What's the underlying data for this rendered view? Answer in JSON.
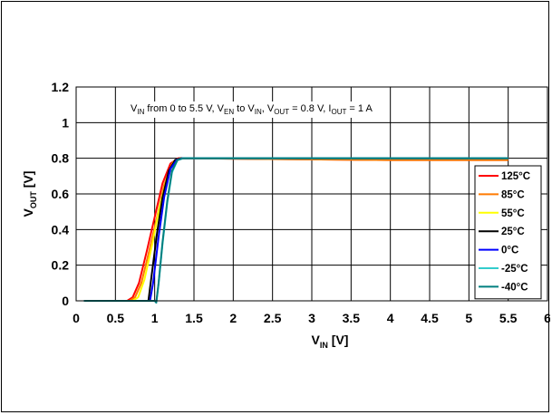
{
  "chart_data": {
    "type": "line",
    "title": "",
    "annotation": {
      "segments": [
        {
          "t": "V"
        },
        {
          "t": "IN",
          "sub": true
        },
        {
          "t": " from 0 to 5.5 V, V"
        },
        {
          "t": "EN",
          "sub": true
        },
        {
          "t": " to V"
        },
        {
          "t": "IN",
          "sub": true
        },
        {
          "t": ", V"
        },
        {
          "t": "OUT",
          "sub": true
        },
        {
          "t": " = 0.8 V, I"
        },
        {
          "t": "OUT",
          "sub": true
        },
        {
          "t": " = 1 A"
        }
      ]
    },
    "xlabel": {
      "main": "V",
      "sub": "IN",
      "suffix": " [V]"
    },
    "ylabel": {
      "main": "V",
      "sub": "OUT",
      "suffix": " [V]"
    },
    "xlim": [
      0,
      6
    ],
    "ylim": [
      0,
      1.2
    ],
    "xticks": [
      0,
      0.5,
      1,
      1.5,
      2,
      2.5,
      3,
      3.5,
      4,
      4.5,
      5,
      5.5,
      6
    ],
    "xtick_labels": [
      "0",
      "0.5",
      "1",
      "1.5",
      "2",
      "2.5",
      "3",
      "3.5",
      "4",
      "4.5",
      "5",
      "5.5",
      "6"
    ],
    "yticks": [
      0,
      0.2,
      0.4,
      0.6,
      0.8,
      1,
      1.2
    ],
    "ytick_labels": [
      "0",
      "0.2",
      "0.4",
      "0.6",
      "0.8",
      "1",
      "1.2"
    ],
    "grid": true,
    "legend_position": "right",
    "series": [
      {
        "name": "125°C",
        "color": "#ff0000",
        "points": [
          [
            0.1,
            0
          ],
          [
            0.65,
            0
          ],
          [
            0.72,
            0.02
          ],
          [
            0.8,
            0.1
          ],
          [
            0.9,
            0.28
          ],
          [
            1.0,
            0.47
          ],
          [
            1.1,
            0.66
          ],
          [
            1.2,
            0.77
          ],
          [
            1.3,
            0.8
          ],
          [
            4.0,
            0.79
          ],
          [
            5.5,
            0.79
          ]
        ]
      },
      {
        "name": "85°C",
        "color": "#ff7a00",
        "points": [
          [
            0.1,
            0
          ],
          [
            0.68,
            0
          ],
          [
            0.75,
            0.02
          ],
          [
            0.83,
            0.1
          ],
          [
            0.93,
            0.28
          ],
          [
            1.03,
            0.47
          ],
          [
            1.12,
            0.65
          ],
          [
            1.22,
            0.77
          ],
          [
            1.32,
            0.8
          ],
          [
            4.0,
            0.79
          ],
          [
            5.5,
            0.79
          ]
        ]
      },
      {
        "name": "55°C",
        "color": "#ffff00",
        "points": [
          [
            0.1,
            0
          ],
          [
            0.72,
            0
          ],
          [
            0.79,
            0.02
          ],
          [
            0.87,
            0.12
          ],
          [
            0.97,
            0.32
          ],
          [
            1.06,
            0.52
          ],
          [
            1.15,
            0.68
          ],
          [
            1.24,
            0.78
          ],
          [
            1.33,
            0.8
          ],
          [
            4.0,
            0.8
          ],
          [
            5.5,
            0.8
          ]
        ]
      },
      {
        "name": "25°C",
        "color": "#000000",
        "points": [
          [
            0.1,
            0
          ],
          [
            0.86,
            0
          ],
          [
            0.92,
            0
          ],
          [
            0.96,
            0.14
          ],
          [
            1.03,
            0.38
          ],
          [
            1.1,
            0.58
          ],
          [
            1.18,
            0.73
          ],
          [
            1.26,
            0.79
          ],
          [
            1.33,
            0.8
          ],
          [
            4.0,
            0.8
          ],
          [
            5.5,
            0.8
          ]
        ]
      },
      {
        "name": "0°C",
        "color": "#0000ff",
        "points": [
          [
            0.1,
            0
          ],
          [
            0.9,
            0
          ],
          [
            0.94,
            0
          ],
          [
            0.98,
            0.1
          ],
          [
            1.05,
            0.36
          ],
          [
            1.12,
            0.58
          ],
          [
            1.2,
            0.74
          ],
          [
            1.28,
            0.79
          ],
          [
            1.35,
            0.8
          ],
          [
            4.0,
            0.8
          ],
          [
            5.5,
            0.8
          ]
        ]
      },
      {
        "name": "-25°C",
        "color": "#33cccc",
        "points": [
          [
            0.1,
            0
          ],
          [
            1.0,
            0
          ],
          [
            1.02,
            -0.01
          ],
          [
            1.05,
            0.1
          ],
          [
            1.1,
            0.32
          ],
          [
            1.16,
            0.55
          ],
          [
            1.22,
            0.72
          ],
          [
            1.29,
            0.79
          ],
          [
            1.36,
            0.8
          ],
          [
            4.0,
            0.8
          ],
          [
            5.5,
            0.8
          ]
        ]
      },
      {
        "name": "-40°C",
        "color": "#007f7f",
        "points": [
          [
            0.1,
            0
          ],
          [
            1.0,
            0
          ],
          [
            1.02,
            -0.01
          ],
          [
            1.05,
            0.1
          ],
          [
            1.1,
            0.33
          ],
          [
            1.16,
            0.56
          ],
          [
            1.22,
            0.73
          ],
          [
            1.29,
            0.79
          ],
          [
            1.36,
            0.8
          ],
          [
            4.0,
            0.8
          ],
          [
            5.5,
            0.8
          ]
        ]
      }
    ]
  }
}
